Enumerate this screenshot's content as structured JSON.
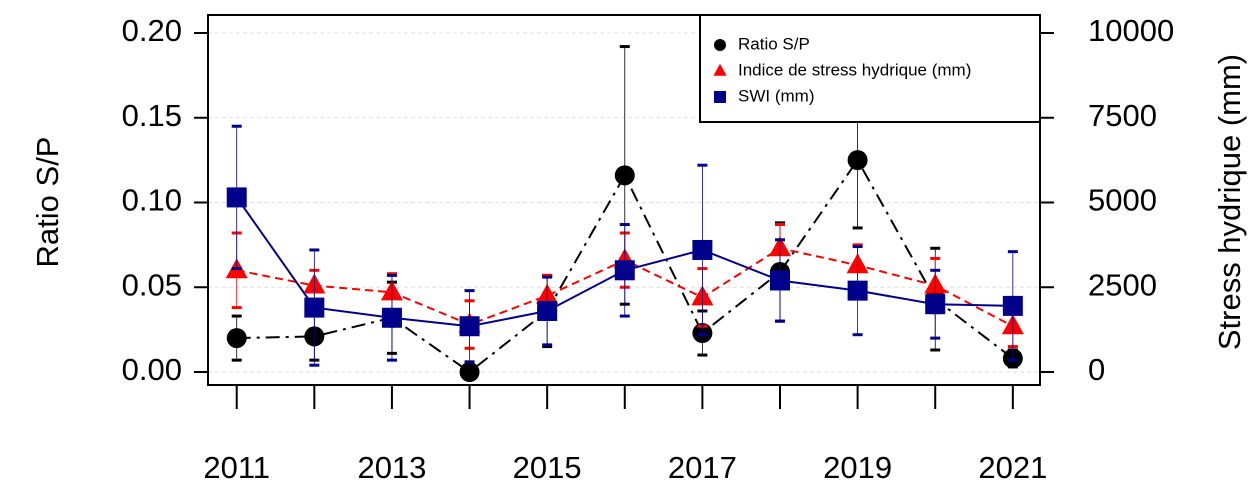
{
  "chart_data": {
    "type": "line",
    "y_label": "Ratio S/P",
    "y2_label": "Stress hydrique (mm)",
    "x": [
      2011,
      2012,
      2013,
      2014,
      2015,
      2016,
      2017,
      2018,
      2019,
      2020,
      2021
    ],
    "xlim": [
      2010.63,
      2021.35
    ],
    "xticks": [
      2011,
      2013,
      2015,
      2017,
      2019,
      2021
    ],
    "ylim": [
      0,
      0.2
    ],
    "yticks": [
      {
        "value": 0,
        "label": "0.00"
      },
      {
        "value": 0.05,
        "label": "0.05"
      },
      {
        "value": 0.1,
        "label": "0.10"
      },
      {
        "value": 0.15,
        "label": "0.15"
      },
      {
        "value": 0.2,
        "label": "0.20"
      }
    ],
    "y2lim": [
      0,
      10000
    ],
    "y2ticks": [
      0,
      2500,
      5000,
      7500,
      10000
    ],
    "grid": true,
    "legend": "top-right",
    "series": [
      {
        "name": "Ratio S/P",
        "color": "#000000",
        "marker": "circle",
        "dash": "14 6 3 6",
        "values": [
          0.02,
          0.021,
          0.032,
          0.0,
          0.036,
          0.116,
          0.023,
          0.059,
          0.125,
          0.043,
          0.008
        ],
        "errors": [
          0.013,
          0.014,
          0.021,
          0.0,
          0.021,
          0.076,
          0.013,
          0.029,
          0.04,
          0.03,
          0.005
        ]
      },
      {
        "name": "Indice de stress hydrique (mm)",
        "color": "#ff0000",
        "marker": "triangle",
        "dash": "8 5",
        "axis": "y2",
        "values": [
          3000,
          2550,
          2350,
          1400,
          2250,
          3300,
          2200,
          3650,
          3150,
          2550,
          1350
        ],
        "errors": [
          1100,
          450,
          550,
          700,
          600,
          800,
          850,
          700,
          600,
          800,
          600
        ]
      },
      {
        "name": "SWI (mm)",
        "color": "#00008b",
        "marker": "square",
        "dash": "none",
        "axis": "y2",
        "values": [
          5150,
          1900,
          1600,
          1350,
          1800,
          3000,
          3600,
          2700,
          2400,
          2000,
          1950
        ],
        "errors": [
          2100,
          1700,
          1250,
          1050,
          1000,
          1350,
          2500,
          1200,
          1300,
          1000,
          1600
        ]
      }
    ]
  }
}
